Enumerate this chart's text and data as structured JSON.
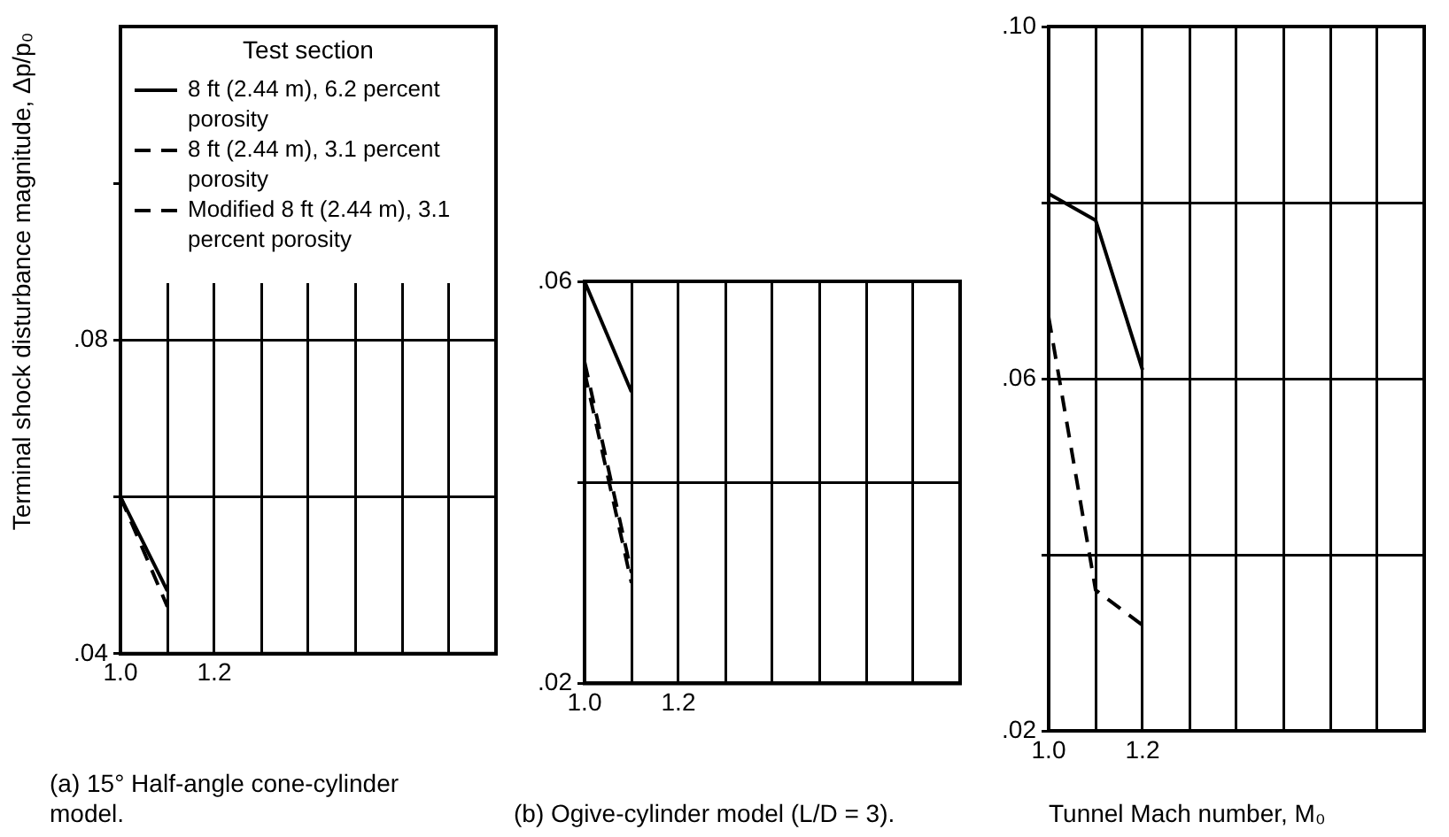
{
  "chart_data": [
    {
      "type": "line",
      "title": "(a) 15° Half-angle cone-cylinder model.",
      "legend_title": "Test section",
      "legend": "top",
      "grid": true,
      "x": [
        1.0,
        1.1
      ],
      "xlim": [
        1.0,
        1.8
      ],
      "xticks": [
        {
          "value": 1.0,
          "label": "1.0"
        },
        {
          "value": 1.1,
          "label": null
        },
        {
          "value": 1.2,
          "label": "1.2"
        },
        {
          "value": 1.3,
          "label": null
        },
        {
          "value": 1.4,
          "label": null
        },
        {
          "value": 1.5,
          "label": null
        },
        {
          "value": 1.6,
          "label": null
        },
        {
          "value": 1.7,
          "label": null
        },
        {
          "value": 1.8,
          "label": null
        }
      ],
      "ylim": [
        0.04,
        0.12
      ],
      "yticks": [
        {
          "value": 0.04,
          "label": ".04"
        },
        {
          "value": 0.06,
          "label": null
        },
        {
          "value": 0.08,
          "label": ".08"
        },
        {
          "value": 0.1,
          "label": null
        }
      ],
      "series": [
        {
          "name": "8 ft (2.44 m), 6.2 percent porosity",
          "color": "#000000",
          "line_style": "solid",
          "values": [
            0.06,
            0.048
          ]
        },
        {
          "name": "8 ft (2.44 m), 3.1 percent porosity",
          "color": "#000000",
          "line_style": "dashed",
          "values": [
            null,
            null
          ]
        },
        {
          "name": "Modified 8 ft (2.44 m), 3.1 percent porosity",
          "color": "#000000",
          "line_style": "dashed",
          "values": [
            0.06,
            0.046
          ]
        }
      ]
    },
    {
      "type": "line",
      "title": "(b) Ogive-cylinder model (L/D = 3).",
      "ylabel": "Terminal shock disturbance magnitude, Δp/p₀",
      "grid": true,
      "x": [
        1.0,
        1.1
      ],
      "xlim": [
        1.0,
        1.8
      ],
      "xticks": [
        {
          "value": 1.0,
          "label": "1.0"
        },
        {
          "value": 1.1,
          "label": null
        },
        {
          "value": 1.2,
          "label": "1.2"
        },
        {
          "value": 1.3,
          "label": null
        },
        {
          "value": 1.4,
          "label": null
        },
        {
          "value": 1.5,
          "label": null
        },
        {
          "value": 1.6,
          "label": null
        },
        {
          "value": 1.7,
          "label": null
        },
        {
          "value": 1.8,
          "label": null
        }
      ],
      "ylim": [
        0.02,
        0.06
      ],
      "yticks": [
        {
          "value": 0.02,
          "label": ".02"
        },
        {
          "value": 0.04,
          "label": null
        },
        {
          "value": 0.06,
          "label": ".06"
        }
      ],
      "series": [
        {
          "color": "#000000",
          "line_style": "solid",
          "values": [
            0.06,
            0.049
          ]
        },
        {
          "color": "#000000",
          "line_style": "dashed",
          "values": [
            0.052,
            0.031
          ]
        },
        {
          "color": "#000000",
          "line_style": "dashed",
          "values": [
            0.051,
            0.03
          ]
        }
      ]
    },
    {
      "type": "line",
      "xlabel": "Tunnel Mach number, M₀",
      "grid": true,
      "x": [
        1.0,
        1.1,
        1.2
      ],
      "xlim": [
        1.0,
        1.8
      ],
      "xticks": [
        {
          "value": 1.0,
          "label": "1.0"
        },
        {
          "value": 1.1,
          "label": null
        },
        {
          "value": 1.2,
          "label": "1.2"
        },
        {
          "value": 1.3,
          "label": null
        },
        {
          "value": 1.4,
          "label": null
        },
        {
          "value": 1.5,
          "label": null
        },
        {
          "value": 1.6,
          "label": null
        },
        {
          "value": 1.7,
          "label": null
        },
        {
          "value": 1.8,
          "label": null
        }
      ],
      "ylim": [
        0.02,
        0.1
      ],
      "yticks": [
        {
          "value": 0.02,
          "label": ".02"
        },
        {
          "value": 0.04,
          "label": null
        },
        {
          "value": 0.06,
          "label": ".06"
        },
        {
          "value": 0.08,
          "label": null
        },
        {
          "value": 0.1,
          "label": ".10"
        }
      ],
      "series": [
        {
          "color": "#000000",
          "line_style": "solid",
          "values": [
            0.081,
            0.078,
            0.061
          ]
        },
        {
          "color": "#000000",
          "line_style": "dashed",
          "values": [
            0.067,
            0.036,
            0.032
          ]
        }
      ]
    }
  ]
}
